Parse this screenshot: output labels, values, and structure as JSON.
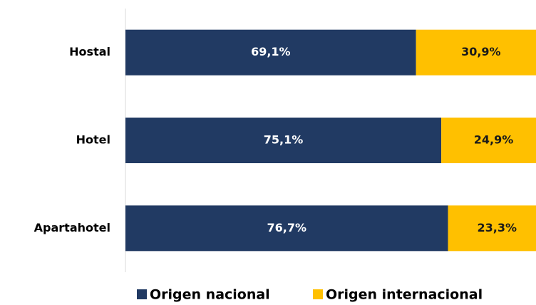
{
  "chart_data": {
    "type": "stacked-bar-horizontal",
    "categories": [
      "Hostal",
      "Hotel",
      "Apartahotel"
    ],
    "series": [
      {
        "name": "Origen nacional",
        "color": "#213a63",
        "values": [
          69.1,
          75.1,
          76.7
        ],
        "value_labels": [
          "69,1%",
          "75,1%",
          "76,7%"
        ]
      },
      {
        "name": "Origen internacional",
        "color": "#ffc000",
        "values": [
          30.9,
          24.9,
          23.3
        ],
        "value_labels": [
          "30,9%",
          "24,9%",
          "23,3%"
        ]
      }
    ],
    "xlim": [
      0,
      100
    ]
  }
}
